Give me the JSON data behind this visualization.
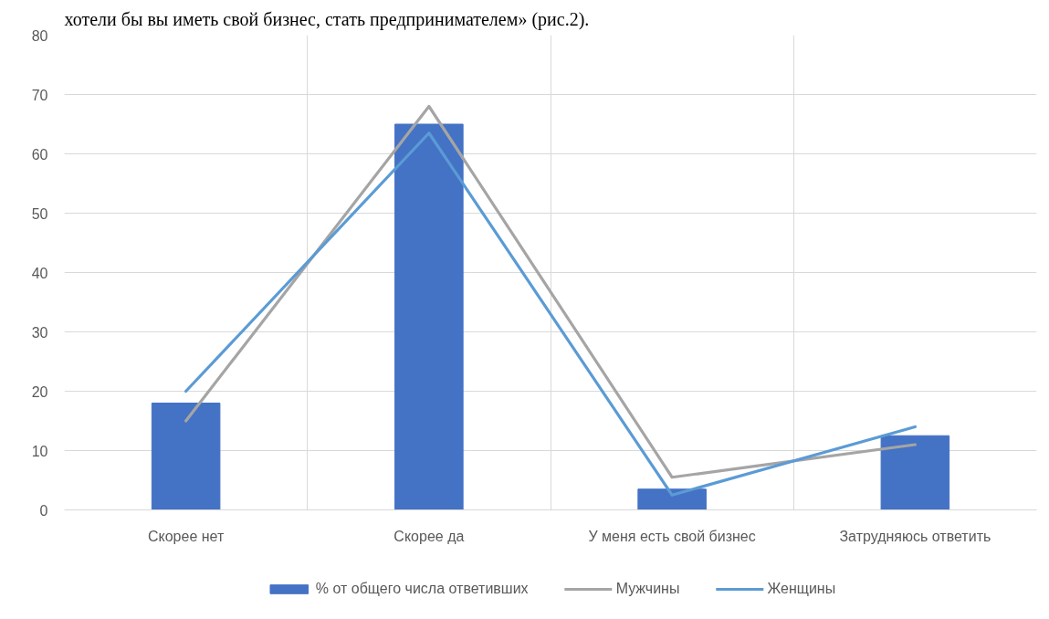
{
  "chart_data": {
    "type": "bar",
    "annotations": [
      "хотели бы вы иметь свой бизнес, стать предпринимателем» (рис.2)."
    ],
    "categories": [
      "Скорее нет",
      "Скорее да",
      "У меня есть свой бизнес",
      "Затрудняюсь ответить"
    ],
    "series": [
      {
        "name": "% от общего числа ответивших",
        "color": "#4472c4",
        "values": [
          18,
          65,
          3.5,
          12.5
        ]
      },
      {
        "name": "Мужчины",
        "type": "line",
        "color": "#a5a5a5",
        "values": [
          15,
          68,
          5.5,
          11
        ]
      },
      {
        "name": "Женщины",
        "type": "line",
        "color": "#5b9bd5",
        "values": [
          20,
          63.5,
          2.5,
          14
        ]
      }
    ],
    "ylim": [
      0,
      80
    ],
    "yticks": [
      0,
      10,
      20,
      30,
      40,
      50,
      60,
      70,
      80
    ],
    "grid": true,
    "legend": "bottom",
    "marker": "none",
    "line_style": "solid"
  }
}
